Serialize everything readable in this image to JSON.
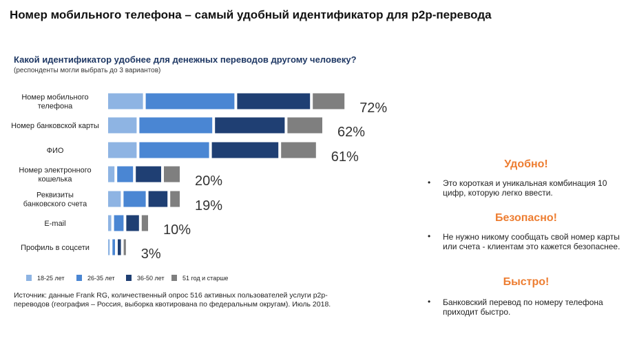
{
  "headline": "Номер мобильного телефона – самый удобный идентификатор для p2p-перевода",
  "question": "Какой идентификатор удобнее для денежных переводов другому человеку?",
  "subnote": "(респонденты могли выбрать до 3 вариантов)",
  "source": "Источник: данные Frank RG, количественный опрос 516 активных пользователей услуги p2p-переводов (география – Россия, выборка квотирована по федеральным округам). Июль 2018.",
  "benefits": [
    {
      "title": "Удобно!",
      "text": "Это короткая и уникальная комбинация 10 цифр, которую легко ввести."
    },
    {
      "title": "Безопасно!",
      "text": "Не нужно никому сообщать свой номер карты или счета - клиентам это кажется безопаснее."
    },
    {
      "title": "Быстро!",
      "text": "Банковский перевод по номеру телефона приходит быстро."
    }
  ],
  "bullet_char": "•",
  "chart_data": {
    "type": "bar",
    "orientation": "horizontal",
    "stacked": true,
    "categories": [
      [
        "Номер мобильного",
        "телефона"
      ],
      [
        "Номер банковской карты"
      ],
      [
        "ФИО"
      ],
      [
        "Номер электронного",
        "кошелька"
      ],
      [
        "Реквизиты",
        "банковского счета"
      ],
      [
        "E-mail"
      ],
      [
        "Профиль в соцсети"
      ]
    ],
    "totals": [
      "72%",
      "62%",
      "61%",
      "20%",
      "19%",
      "10%",
      "3%"
    ],
    "series": [
      {
        "name": "18-25 лет",
        "color": "#8eb4e3",
        "values": [
          11,
          9,
          9,
          2,
          4,
          1,
          0.5
        ]
      },
      {
        "name": "26-35 лет",
        "color": "#4a86d3",
        "values": [
          28,
          23,
          22,
          5,
          7,
          3,
          0.8
        ]
      },
      {
        "name": "36-50 лет",
        "color": "#1f3f73",
        "values": [
          23,
          22,
          21,
          8,
          6,
          4,
          1
        ]
      },
      {
        "name": "51 год и старше",
        "color": "#7f7f7f",
        "values": [
          10,
          11,
          11,
          5,
          3,
          2,
          0.7
        ]
      }
    ],
    "legend_position": "bottom",
    "grid": false
  }
}
